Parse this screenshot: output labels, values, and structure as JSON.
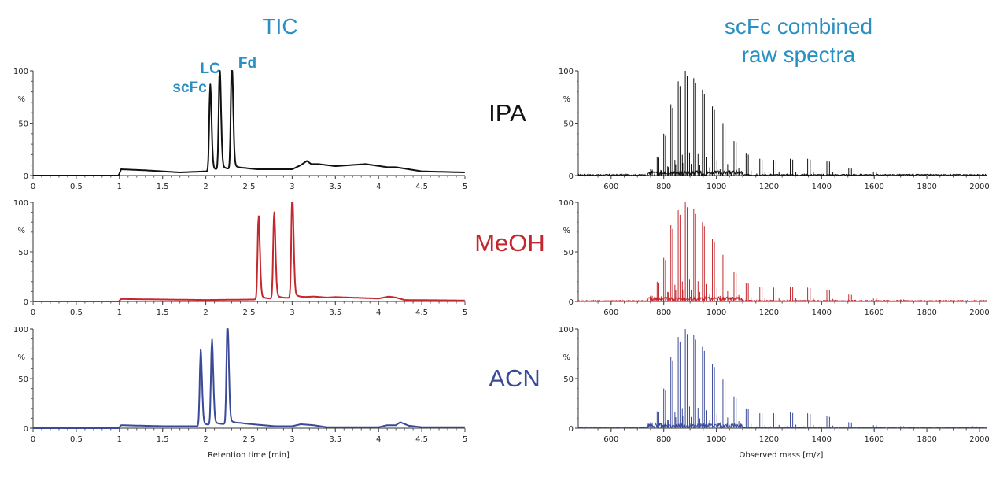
{
  "colors": {
    "title": "#2a8fc2",
    "IPA": "#111111",
    "MeOH": "#c3282e",
    "ACN": "#3a4a98"
  },
  "chart_data": [
    {
      "type": "line",
      "title": "TIC",
      "xlabel": "Retention time [min]",
      "ylabel": "%",
      "xlim": [
        0,
        5
      ],
      "ylim": [
        0,
        100
      ],
      "xticks": [
        "0",
        "0.5",
        "1",
        "1.5",
        "2",
        "2.5",
        "3",
        "3.5",
        "4",
        "4.5",
        "5"
      ],
      "yticks": [
        "0",
        "50",
        "100"
      ],
      "annotations": [
        {
          "text": "scFc",
          "x": 2.05
        },
        {
          "text": "LC",
          "x": 2.16
        },
        {
          "text": "Fd",
          "x": 2.3
        }
      ],
      "series": [
        {
          "name": "IPA",
          "baseline": [
            [
              0,
              0
            ],
            [
              0.99,
              0
            ],
            [
              1.02,
              6
            ],
            [
              1.3,
              5
            ],
            [
              1.7,
              3
            ],
            [
              2.0,
              4
            ],
            [
              2.45,
              7
            ],
            [
              2.6,
              6
            ],
            [
              3.0,
              6
            ],
            [
              3.1,
              10
            ],
            [
              3.17,
              14
            ],
            [
              3.22,
              11
            ],
            [
              3.3,
              11
            ],
            [
              3.5,
              9
            ],
            [
              3.85,
              11
            ],
            [
              4.1,
              8
            ],
            [
              4.2,
              8
            ],
            [
              4.5,
              4
            ],
            [
              5,
              3
            ]
          ],
          "peaks": [
            [
              2.05,
              78
            ],
            [
              2.16,
              92
            ],
            [
              2.3,
              100
            ]
          ]
        },
        {
          "name": "MeOH",
          "baseline": [
            [
              0,
              0
            ],
            [
              0.99,
              0
            ],
            [
              1.02,
              2.5
            ],
            [
              1.5,
              2
            ],
            [
              2.0,
              1.5
            ],
            [
              2.55,
              2
            ],
            [
              3.1,
              4
            ],
            [
              3.25,
              5
            ],
            [
              3.4,
              4
            ],
            [
              3.5,
              4.5
            ],
            [
              4.0,
              3
            ],
            [
              4.12,
              5
            ],
            [
              4.2,
              4
            ],
            [
              4.3,
              1.5
            ],
            [
              5,
              1
            ]
          ],
          "peaks": [
            [
              2.61,
              80
            ],
            [
              2.79,
              83
            ],
            [
              3.0,
              100
            ]
          ]
        },
        {
          "name": "ACN",
          "baseline": [
            [
              0,
              0
            ],
            [
              0.99,
              0
            ],
            [
              1.02,
              3
            ],
            [
              1.5,
              2
            ],
            [
              1.9,
              2
            ],
            [
              2.4,
              5
            ],
            [
              2.8,
              2
            ],
            [
              3.0,
              2
            ],
            [
              3.1,
              4
            ],
            [
              3.25,
              3
            ],
            [
              3.4,
              1
            ],
            [
              4.0,
              1
            ],
            [
              4.1,
              3
            ],
            [
              4.2,
              3
            ],
            [
              4.25,
              6
            ],
            [
              4.35,
              2.5
            ],
            [
              4.5,
              1
            ],
            [
              5,
              1
            ]
          ],
          "peaks": [
            [
              1.94,
              72
            ],
            [
              2.07,
              82
            ],
            [
              2.25,
              100
            ]
          ]
        }
      ]
    },
    {
      "type": "line",
      "title": "scFc combined raw spectra",
      "xlabel": "Observed mass [m/z]",
      "ylabel": "%",
      "xlim": [
        475,
        2030
      ],
      "ylim": [
        0,
        100
      ],
      "xticks": [
        "600",
        "800",
        "1000",
        "1200",
        "1400",
        "1600",
        "1800",
        "2000"
      ],
      "yticks": [
        "0",
        "50",
        "100"
      ],
      "series": [
        {
          "name": "IPA",
          "peaks": [
            [
              750,
              6
            ],
            [
              775,
              18
            ],
            [
              800,
              40
            ],
            [
              827,
              68
            ],
            [
              855,
              90
            ],
            [
              882,
              100
            ],
            [
              914,
              93
            ],
            [
              947,
              82
            ],
            [
              985,
              66
            ],
            [
              1025,
              50
            ],
            [
              1067,
              33
            ],
            [
              1113,
              21
            ],
            [
              1165,
              16
            ],
            [
              1218,
              15
            ],
            [
              1281,
              16
            ],
            [
              1347,
              16
            ],
            [
              1420,
              14
            ],
            [
              1503,
              7
            ],
            [
              1597,
              3
            ],
            [
              1700,
              1
            ]
          ]
        },
        {
          "name": "MeOH",
          "peaks": [
            [
              750,
              6
            ],
            [
              775,
              20
            ],
            [
              800,
              44
            ],
            [
              827,
              77
            ],
            [
              855,
              92
            ],
            [
              882,
              100
            ],
            [
              914,
              93
            ],
            [
              947,
              80
            ],
            [
              985,
              63
            ],
            [
              1025,
              47
            ],
            [
              1067,
              30
            ],
            [
              1113,
              19
            ],
            [
              1165,
              15
            ],
            [
              1218,
              14
            ],
            [
              1281,
              15
            ],
            [
              1347,
              14
            ],
            [
              1420,
              12
            ],
            [
              1503,
              7
            ],
            [
              1597,
              3
            ],
            [
              1700,
              2
            ]
          ]
        },
        {
          "name": "ACN",
          "peaks": [
            [
              750,
              6
            ],
            [
              775,
              17
            ],
            [
              800,
              40
            ],
            [
              827,
              72
            ],
            [
              855,
              92
            ],
            [
              882,
              100
            ],
            [
              914,
              94
            ],
            [
              947,
              82
            ],
            [
              985,
              65
            ],
            [
              1025,
              49
            ],
            [
              1067,
              32
            ],
            [
              1113,
              20
            ],
            [
              1165,
              15
            ],
            [
              1218,
              15
            ],
            [
              1281,
              16
            ],
            [
              1347,
              15
            ],
            [
              1420,
              12
            ],
            [
              1503,
              6
            ],
            [
              1597,
              3
            ],
            [
              1700,
              2
            ],
            [
              1975,
              2
            ]
          ]
        }
      ]
    }
  ],
  "labels": {
    "tic_title": "TIC",
    "spectra_title_line1": "scFc combined",
    "spectra_title_line2": "raw spectra",
    "conditions": [
      "IPA",
      "MeOH",
      "ACN"
    ]
  }
}
